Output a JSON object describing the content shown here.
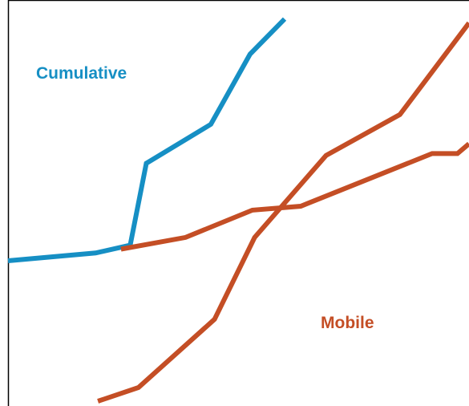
{
  "chart_data": {
    "type": "line",
    "title": "",
    "xlabel": "",
    "ylabel": "",
    "xlim": [
      0,
      100
    ],
    "ylim": [
      0,
      100
    ],
    "grid": false,
    "legend": "inline labels",
    "series": [
      {
        "name": "Cumulative",
        "color": "#168fc4",
        "points": [
          [
            0,
            36
          ],
          [
            19,
            38
          ],
          [
            26.5,
            40
          ],
          [
            30,
            61
          ],
          [
            44,
            71
          ],
          [
            52.5,
            89
          ],
          [
            60,
            98
          ]
        ]
      },
      {
        "name": "Mobile",
        "color": "#c44e25",
        "points": [
          [
            19.5,
            0
          ],
          [
            28.3,
            3.5
          ],
          [
            44.8,
            21
          ],
          [
            53.5,
            42
          ],
          [
            69,
            63
          ],
          [
            85,
            73.5
          ],
          [
            100,
            97
          ]
        ]
      },
      {
        "color": "#c44e25",
        "points": [
          [
            24.5,
            39
          ],
          [
            38.5,
            42
          ],
          [
            53,
            49
          ],
          [
            63.5,
            50
          ],
          [
            92,
            63.5
          ],
          [
            97.5,
            63.5
          ],
          [
            100,
            66
          ]
        ]
      }
    ]
  }
}
